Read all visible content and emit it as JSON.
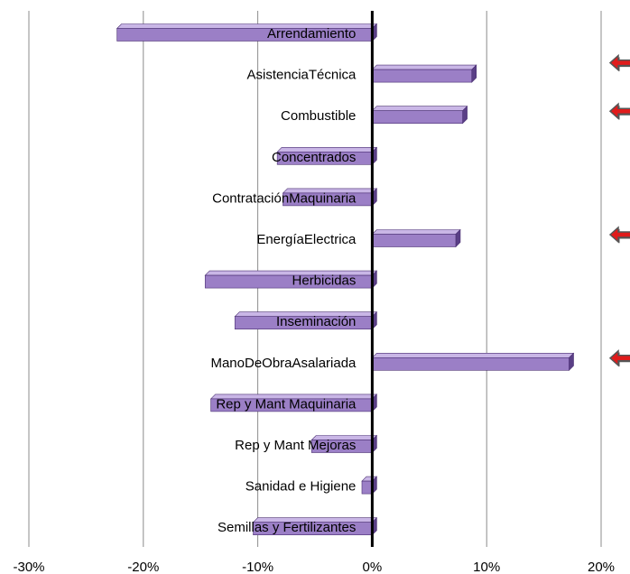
{
  "chart_data": {
    "type": "bar",
    "orientation": "horizontal",
    "categories": [
      "Arrendamiento",
      "AsistenciaTécnica",
      "Combustible",
      "Concentrados",
      "ContrataciónMaquinaria",
      "EnergíaElectrica",
      "Herbicidas",
      "Inseminación",
      "ManoDeObraAsalariada",
      "Rep y Mant Maquinaria",
      "Rep y Mant Mejoras",
      "Sanidad e Higiene",
      "Semillas y Fertilizantes"
    ],
    "series": [
      {
        "values": [
          -22.3,
          8.7,
          7.9,
          -8.3,
          -7.8,
          7.3,
          -14.6,
          -12.0,
          17.2,
          -14.1,
          -5.3,
          -0.9,
          -10.4
        ]
      }
    ],
    "title": "",
    "xlabel": "",
    "ylabel": "",
    "xlim": [
      -30,
      20
    ],
    "xticks": [
      -30,
      -20,
      -10,
      0,
      10,
      20
    ],
    "xtick_labels": [
      "-30%",
      "-20%",
      "-10%",
      "0%",
      "10%",
      "20%"
    ],
    "grid": "vertical",
    "legend": "none",
    "highlighted_categories": [
      "AsistenciaTécnica",
      "Combustible",
      "EnergíaElectrica",
      "ManoDeObraAsalariada"
    ],
    "highlight_marker": "arrow-left-icon",
    "colors": {
      "bar_front": "#9b7fc6",
      "bar_top": "#c9b6e6",
      "bar_side": "#5a3f86",
      "bar_stroke": "#4a2f72",
      "gridline": "#8c8c8c",
      "zero_line": "#000000",
      "arrow_fill": "#e01b1b",
      "arrow_outline": "#555555"
    }
  }
}
